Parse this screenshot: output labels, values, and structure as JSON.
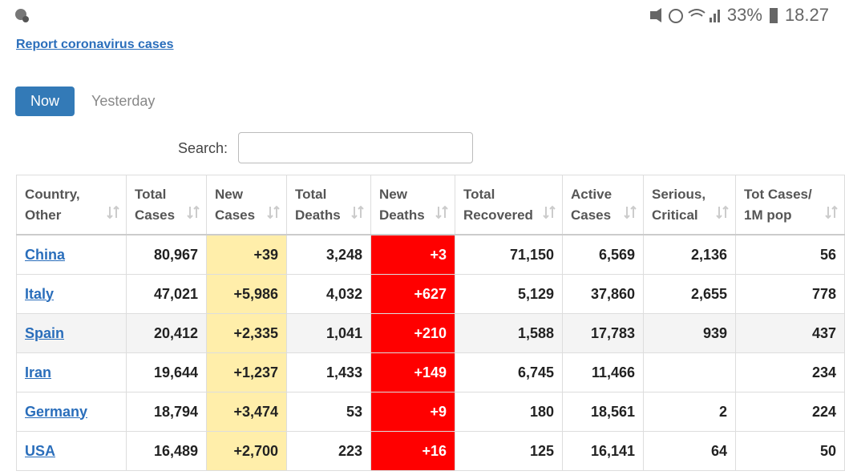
{
  "status_bar": {
    "battery": "33%",
    "time": "18.27"
  },
  "link": "Report coronavirus cases",
  "tabs": [
    "Now",
    "Yesterday"
  ],
  "search_label": "Search:",
  "table": {
    "headers": [
      "Country, Other",
      "Total Cases",
      "New Cases",
      "Total Deaths",
      "New Deaths",
      "Total Recovered",
      "Active Cases",
      "Serious, Critical",
      "Tot Cases/ 1M pop"
    ],
    "rows": [
      [
        "China",
        "80,967",
        "+39",
        "3,248",
        "+3",
        "71,150",
        "6,569",
        "2,136",
        "56"
      ],
      [
        "Italy",
        "47,021",
        "+5,986",
        "4,032",
        "+627",
        "5,129",
        "37,860",
        "2,655",
        "778"
      ],
      [
        "Spain",
        "20,412",
        "+2,335",
        "1,041",
        "+210",
        "1,588",
        "17,783",
        "939",
        "437"
      ],
      [
        "Iran",
        "19,644",
        "+1,237",
        "1,433",
        "+149",
        "6,745",
        "11,466",
        null,
        "234"
      ],
      [
        "Germany",
        "18,794",
        "+3,474",
        "53",
        "+9",
        "180",
        "18,561",
        "2",
        "224"
      ],
      [
        "USA",
        "16,489",
        "+2,700",
        "223",
        "+16",
        "125",
        "16,141",
        "64",
        "50"
      ]
    ]
  }
}
